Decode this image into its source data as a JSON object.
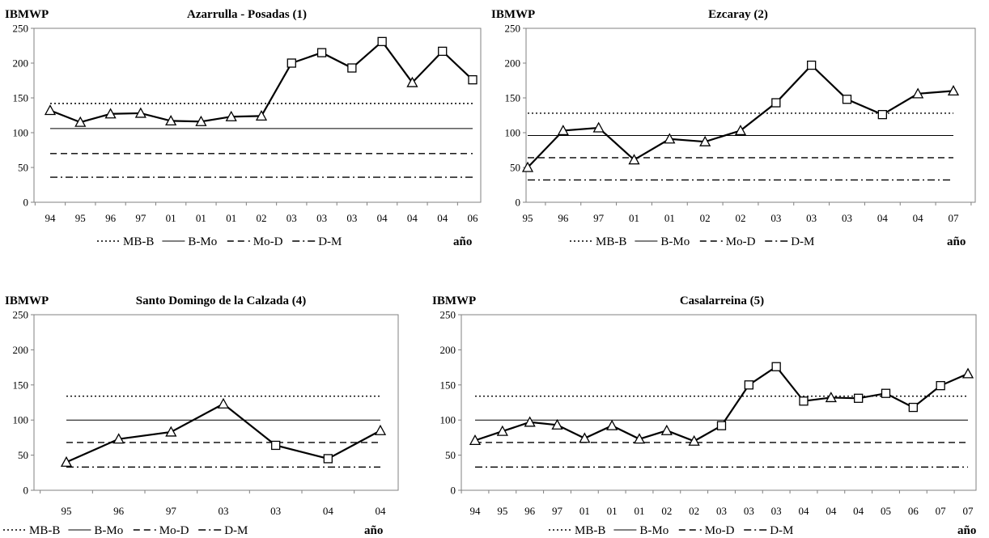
{
  "chart_data": [
    {
      "type": "line",
      "title": "Azarrulla - Posadas (1)",
      "ylabel": "IBMWP",
      "xlabel": "año",
      "ylim": [
        0,
        250
      ],
      "yticks": [
        0,
        50,
        100,
        150,
        200,
        250
      ],
      "categories": [
        "94",
        "95",
        "96",
        "97",
        "01",
        "01",
        "01",
        "02",
        "03",
        "03",
        "03",
        "04",
        "04",
        "04",
        "06"
      ],
      "series": [
        {
          "values": [
            132,
            115,
            127,
            128,
            117,
            116,
            123,
            124,
            200,
            215,
            193,
            231,
            172,
            217,
            176
          ],
          "markers": [
            "triangle",
            "triangle",
            "triangle",
            "triangle",
            "triangle",
            "triangle",
            "triangle",
            "triangle",
            "square",
            "square",
            "square",
            "square",
            "triangle",
            "square",
            "square"
          ]
        }
      ],
      "thresholds": [
        {
          "name": "MB-B",
          "value": 142,
          "style": "dotted"
        },
        {
          "name": "B-Mo",
          "value": 106,
          "style": "solid"
        },
        {
          "name": "Mo-D",
          "value": 70,
          "style": "dashed"
        },
        {
          "name": "D-M",
          "value": 36,
          "style": "dashdot"
        }
      ]
    },
    {
      "type": "line",
      "title": "Ezcaray (2)",
      "ylabel": "IBMWP",
      "xlabel": "año",
      "ylim": [
        0,
        250
      ],
      "yticks": [
        0,
        50,
        100,
        150,
        200,
        250
      ],
      "categories": [
        "95",
        "96",
        "97",
        "01",
        "01",
        "02",
        "02",
        "03",
        "03",
        "03",
        "04",
        "04",
        "07"
      ],
      "series": [
        {
          "values": [
            50,
            103,
            107,
            61,
            91,
            87,
            103,
            143,
            197,
            148,
            126,
            156,
            160
          ],
          "markers": [
            "triangle",
            "triangle",
            "triangle",
            "triangle",
            "triangle",
            "triangle",
            "triangle",
            "square",
            "square",
            "square",
            "square",
            "triangle",
            "triangle"
          ]
        }
      ],
      "thresholds": [
        {
          "name": "MB-B",
          "value": 128,
          "style": "dotted"
        },
        {
          "name": "B-Mo",
          "value": 96,
          "style": "solid"
        },
        {
          "name": "Mo-D",
          "value": 64,
          "style": "dashed"
        },
        {
          "name": "D-M",
          "value": 32,
          "style": "dashdot"
        }
      ]
    },
    {
      "type": "line",
      "title": "Santo Domingo de la Calzada (4)",
      "ylabel": "IBMWP",
      "xlabel": "año",
      "ylim": [
        0,
        250
      ],
      "yticks": [
        0,
        50,
        100,
        150,
        200,
        250
      ],
      "categories": [
        "95",
        "96",
        "97",
        "03",
        "03",
        "04",
        "04"
      ],
      "series": [
        {
          "values": [
            40,
            73,
            83,
            123,
            64,
            45,
            85
          ],
          "markers": [
            "triangle",
            "triangle",
            "triangle",
            "triangle",
            "square",
            "square",
            "triangle"
          ]
        }
      ],
      "thresholds": [
        {
          "name": "MB-B",
          "value": 134,
          "style": "dotted"
        },
        {
          "name": "B-Mo",
          "value": 100,
          "style": "solid"
        },
        {
          "name": "Mo-D",
          "value": 68,
          "style": "dashed"
        },
        {
          "name": "D-M",
          "value": 33,
          "style": "dashdot"
        }
      ]
    },
    {
      "type": "line",
      "title": "Casalarreina (5)",
      "ylabel": "IBMWP",
      "xlabel": "año",
      "ylim": [
        0,
        250
      ],
      "yticks": [
        0,
        50,
        100,
        150,
        200,
        250
      ],
      "categories": [
        "94",
        "95",
        "96",
        "97",
        "01",
        "01",
        "01",
        "02",
        "02",
        "03",
        "03",
        "03",
        "04",
        "04",
        "04",
        "05",
        "06",
        "07",
        "07"
      ],
      "series": [
        {
          "values": [
            71,
            84,
            97,
            93,
            74,
            92,
            73,
            85,
            70,
            92,
            150,
            176,
            127,
            132,
            131,
            138,
            118,
            149,
            166
          ],
          "markers": [
            "triangle",
            "triangle",
            "triangle",
            "triangle",
            "triangle",
            "triangle",
            "triangle",
            "triangle",
            "triangle",
            "square",
            "square",
            "square",
            "square",
            "triangle",
            "square",
            "square",
            "square",
            "square",
            "triangle"
          ]
        }
      ],
      "thresholds": [
        {
          "name": "MB-B",
          "value": 134,
          "style": "dotted"
        },
        {
          "name": "B-Mo",
          "value": 100,
          "style": "solid"
        },
        {
          "name": "Mo-D",
          "value": 68,
          "style": "dashed"
        },
        {
          "name": "D-M",
          "value": 33,
          "style": "dashdot"
        }
      ]
    }
  ]
}
